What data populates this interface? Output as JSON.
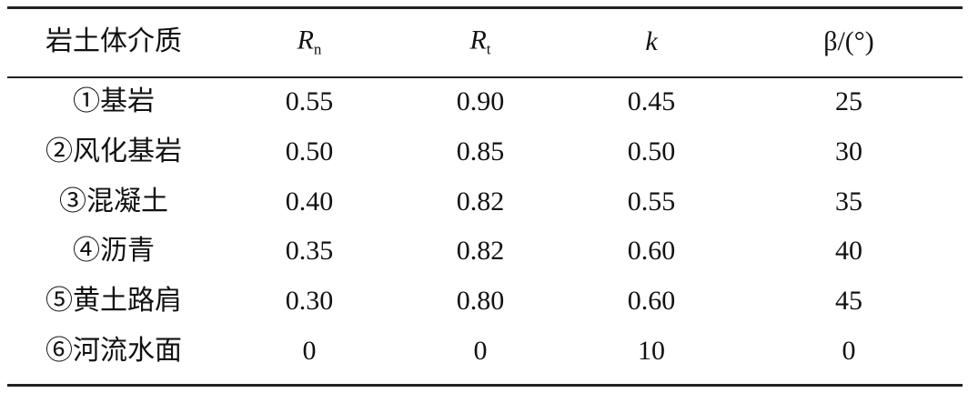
{
  "table": {
    "header": [
      "岩土体介质",
      {
        "main": "R",
        "sub": "n"
      },
      {
        "main": "R",
        "sub": "t"
      },
      "k",
      "β/(°)"
    ],
    "rows": [
      [
        "①基岩",
        "0.55",
        "0.90",
        "0.45",
        "25"
      ],
      [
        "②风化基岩",
        "0.50",
        "0.85",
        "0.50",
        "30"
      ],
      [
        "③混凝土",
        "0.40",
        "0.82",
        "0.55",
        "35"
      ],
      [
        "④沥青",
        "0.35",
        "0.82",
        "0.60",
        "40"
      ],
      [
        "⑤黄土路肩",
        "0.30",
        "0.80",
        "0.60",
        "45"
      ],
      [
        "⑥河流水面",
        "0",
        "0",
        "10",
        "0"
      ]
    ]
  }
}
